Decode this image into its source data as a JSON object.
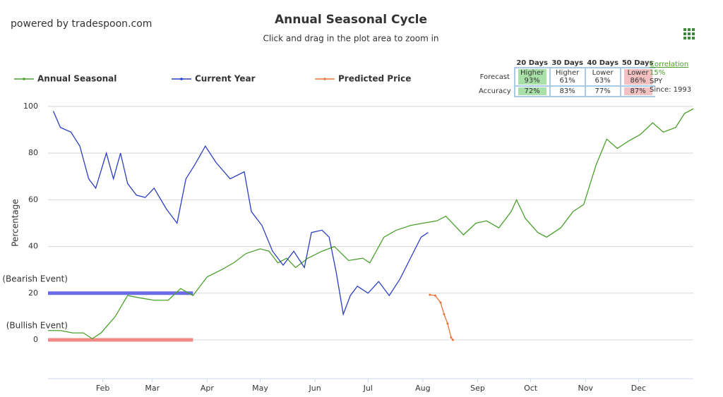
{
  "brand": "powered by tradespoon.com",
  "forecast_table": {
    "headers": [
      "20 Days",
      "30 Days",
      "40 Days",
      "50 Days"
    ],
    "rows": [
      {
        "label": "Forecast",
        "cells": [
          {
            "direction": "Higher",
            "percent": "93%",
            "bg": "#a8e0a8"
          },
          {
            "direction": "Higher",
            "percent": "61%"
          },
          {
            "direction": "Lower",
            "percent": "63%"
          },
          {
            "direction": "Lower",
            "percent": "86%",
            "bg": "#f3c1c1"
          }
        ]
      },
      {
        "label": "Accuracy",
        "cells": [
          {
            "percent": "72%",
            "bg": "#a8e0a8"
          },
          {
            "percent": "83%"
          },
          {
            "percent": "77%"
          },
          {
            "percent": "87%",
            "bg": "#f3c1c1"
          }
        ]
      }
    ],
    "correlation": {
      "label": "Correlation",
      "value": "15%"
    },
    "symbol": "SPY",
    "since": "Since: 1993"
  },
  "chart_data": {
    "type": "line",
    "title": "Annual Seasonal Cycle",
    "subtitle": "Click and drag in the plot area to zoom in",
    "y_label": "Percentage",
    "xlim": [
      0,
      365
    ],
    "xticks": [
      {
        "value": 31,
        "label": "Feb"
      },
      {
        "value": 59,
        "label": "Mar"
      },
      {
        "value": 90,
        "label": "Apr"
      },
      {
        "value": 120,
        "label": "May"
      },
      {
        "value": 151,
        "label": "Jun"
      },
      {
        "value": 181,
        "label": "Jul"
      },
      {
        "value": 212,
        "label": "Aug"
      },
      {
        "value": 243,
        "label": "Sep"
      },
      {
        "value": 273,
        "label": "Oct"
      },
      {
        "value": 304,
        "label": "Nov"
      },
      {
        "value": 334,
        "label": "Dec"
      }
    ],
    "ylim": [
      -16,
      103
    ],
    "yticks": [
      0,
      20,
      40,
      60,
      80,
      100
    ],
    "grid": true,
    "series": [
      {
        "name": "Annual Seasonal",
        "color": "#4aa02c",
        "x": [
          0,
          7,
          14,
          20,
          25,
          30,
          38,
          45,
          52,
          60,
          68,
          75,
          82,
          90,
          98,
          105,
          112,
          120,
          125,
          130,
          135,
          140,
          147,
          155,
          162,
          170,
          178,
          182,
          190,
          197,
          205,
          212,
          220,
          225,
          230,
          235,
          242,
          248,
          255,
          262,
          265,
          270,
          277,
          282,
          290,
          297,
          303,
          310,
          316,
          322,
          328,
          335,
          342,
          348,
          355,
          360,
          365
        ],
        "values": [
          4,
          4,
          3,
          3,
          0.5,
          3,
          10,
          19,
          18,
          17,
          17,
          22,
          19,
          27,
          30,
          33,
          37,
          39,
          38,
          33,
          35,
          31,
          35,
          38,
          40,
          34,
          35,
          33,
          44,
          47,
          49,
          50,
          51,
          53,
          49,
          45,
          50,
          51,
          48,
          55,
          60,
          52,
          46,
          44,
          48,
          55,
          58,
          75,
          86,
          82,
          85,
          88,
          93,
          89,
          91,
          97,
          99
        ]
      },
      {
        "name": "Current Year",
        "color": "#2a3fbf",
        "x": [
          3,
          7,
          13,
          18,
          23,
          27,
          33,
          37,
          41,
          45,
          50,
          55,
          60,
          67,
          73,
          78,
          83,
          89,
          95,
          103,
          111,
          115,
          121,
          127,
          133,
          139,
          145,
          149,
          155,
          159,
          163,
          167,
          171,
          175,
          181,
          187,
          193,
          199,
          205,
          211,
          215
        ],
        "values": [
          98,
          91,
          89,
          83,
          69,
          65,
          80,
          69,
          80,
          67,
          62,
          61,
          65,
          56,
          50,
          69,
          75,
          83,
          76,
          69,
          72,
          55,
          49,
          38,
          32,
          38,
          31,
          46,
          47,
          44,
          29,
          11,
          19,
          23,
          20,
          25,
          19,
          26,
          35,
          44,
          46
        ]
      },
      {
        "name": "Predicted Price",
        "color": "#e8743b",
        "x": [
          216,
          219,
          222,
          224,
          226,
          228,
          229
        ],
        "values": [
          19.3,
          19,
          16,
          11,
          7,
          1,
          0
        ]
      }
    ],
    "events": [
      {
        "label": "LL (Bearish Event)",
        "value": 20,
        "x": [
          0,
          82
        ],
        "color": "#6b6bea"
      },
      {
        "label": "(Bullish Event)",
        "value": 0,
        "x": [
          0,
          82
        ],
        "color": "#f08a84"
      }
    ]
  }
}
